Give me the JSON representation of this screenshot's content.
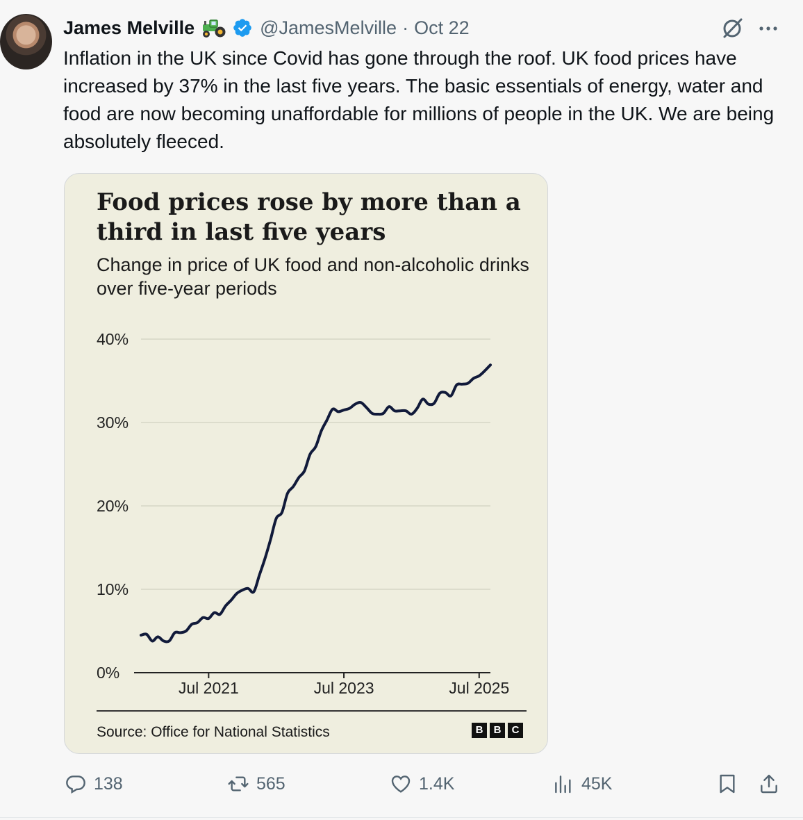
{
  "tweet": {
    "author_name": "James Melville",
    "handle": "@JamesMelville",
    "separator": "·",
    "date": "Oct 22",
    "text": "Inflation in the UK since Covid has gone through the roof. UK food prices have increased by 37% in the last five years. The basic essentials of energy, water and food are now becoming unaffordable for millions of people in the UK. We are being absolutely fleeced."
  },
  "icons": {
    "tractor": "tractor-emoji-icon",
    "verified": "verified-badge-icon",
    "grok": "grok-icon",
    "more": "more-options-icon",
    "reply": "reply-icon",
    "repost": "repost-icon",
    "like": "like-icon",
    "views": "views-icon",
    "bookmark": "bookmark-icon",
    "share": "share-icon"
  },
  "colors": {
    "verified": "#1d9bf0",
    "chart_background": "#efeedf",
    "line": "#111a3a"
  },
  "chart_card": {
    "title": "Food prices rose by more than a third in last five years",
    "subtitle": "Change in price of UK food and non-alcoholic drinks over five-year periods",
    "source": "Source: Office for National Statistics",
    "logo_letters": [
      "B",
      "B",
      "C"
    ]
  },
  "chart_data": {
    "type": "line",
    "title": "Food prices rose by more than a third in last five years",
    "subtitle": "Change in price of UK food and non-alcoholic drinks over five-year periods",
    "xlabel": "",
    "ylabel": "",
    "x_ticks": [
      "Jul 2021",
      "Jul 2023",
      "Jul 2025"
    ],
    "y_ticks": [
      "0%",
      "10%",
      "20%",
      "30%",
      "40%"
    ],
    "ylim": [
      0,
      40
    ],
    "xlim": [
      "2020-07",
      "2025-09"
    ],
    "grid": "horizontal",
    "series": [
      {
        "x": [
          "2020-07",
          "2020-08",
          "2020-09",
          "2020-10",
          "2020-11",
          "2020-12",
          "2021-01",
          "2021-02",
          "2021-03",
          "2021-04",
          "2021-05",
          "2021-06",
          "2021-07",
          "2021-08",
          "2021-09",
          "2021-10",
          "2021-11",
          "2021-12",
          "2022-01",
          "2022-02",
          "2022-03",
          "2022-04",
          "2022-05",
          "2022-06",
          "2022-07",
          "2022-08",
          "2022-09",
          "2022-10",
          "2022-11",
          "2022-12",
          "2023-01",
          "2023-02",
          "2023-03",
          "2023-04",
          "2023-05",
          "2023-06",
          "2023-07",
          "2023-08",
          "2023-09",
          "2023-10",
          "2023-11",
          "2023-12",
          "2024-01",
          "2024-02",
          "2024-03",
          "2024-04",
          "2024-05",
          "2024-06",
          "2024-07",
          "2024-08",
          "2024-09",
          "2024-10",
          "2024-11",
          "2024-12",
          "2025-01",
          "2025-02",
          "2025-03",
          "2025-04",
          "2025-05",
          "2025-06",
          "2025-07",
          "2025-08",
          "2025-09"
        ],
        "values": [
          4.5,
          4.6,
          3.8,
          4.3,
          3.8,
          3.8,
          4.8,
          4.8,
          5.0,
          5.8,
          6.0,
          6.6,
          6.5,
          7.2,
          7.0,
          8.0,
          8.7,
          9.5,
          9.9,
          10.1,
          9.7,
          11.7,
          13.7,
          16.0,
          18.5,
          19.2,
          21.5,
          22.3,
          23.4,
          24.2,
          26.2,
          27.1,
          29.0,
          30.3,
          31.6,
          31.3,
          31.5,
          31.7,
          32.2,
          32.4,
          31.8,
          31.1,
          31.0,
          31.1,
          31.9,
          31.4,
          31.4,
          31.4,
          31.0,
          31.7,
          32.8,
          32.2,
          32.3,
          33.5,
          33.6,
          33.2,
          34.5,
          34.6,
          34.7,
          35.3,
          35.6,
          36.2,
          36.9
        ]
      }
    ]
  },
  "actions": {
    "replies": "138",
    "reposts": "565",
    "likes": "1.4K",
    "views": "45K"
  }
}
